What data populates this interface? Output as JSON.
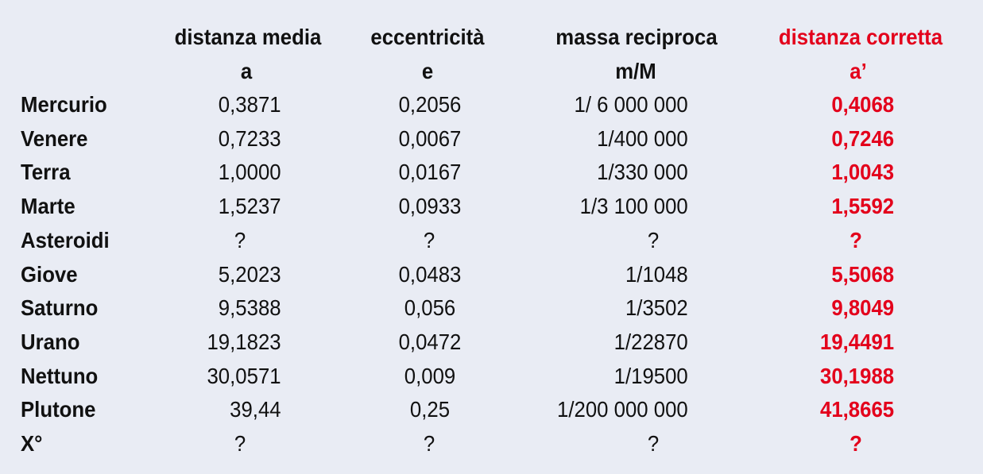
{
  "headers": [
    {
      "line1": "distanza media",
      "line2": "a"
    },
    {
      "line1": "eccentricità",
      "line2": "e"
    },
    {
      "line1": "massa reciproca",
      "line2": "m/M"
    },
    {
      "line1": "distanza corretta",
      "line2": "a’"
    }
  ],
  "rows": [
    {
      "name": "Mercurio",
      "a": "0,3871",
      "e": "0,2056",
      "m": "1/ 6 000 000",
      "ac": "0,4068"
    },
    {
      "name": "Venere",
      "a": "0,7233",
      "e": "0,0067",
      "m": "1/400 000",
      "ac": "0,7246"
    },
    {
      "name": "Terra",
      "a": "1,0000",
      "e": "0,0167",
      "m": "1/330 000",
      "ac": "1,0043"
    },
    {
      "name": "Marte",
      "a": "1,5237",
      "e": "0,0933",
      "m": "1/3 100 000",
      "ac": "1,5592"
    },
    {
      "name": "Asteroidi",
      "a": "?",
      "e": "?",
      "m": "?",
      "ac": "?"
    },
    {
      "name": "Giove",
      "a": "5,2023",
      "e": "0,0483",
      "m": "1/1048",
      "ac": "5,5068"
    },
    {
      "name": "Saturno",
      "a": "9,5388",
      "e": "0,056",
      "m": "1/3502",
      "ac": "9,8049"
    },
    {
      "name": "Urano",
      "a": "19,1823",
      "e": "0,0472",
      "m": "1/22870",
      "ac": "19,4491"
    },
    {
      "name": "Nettuno",
      "a": "30,0571",
      "e": "0,009",
      "m": "1/19500",
      "ac": "30,1988"
    },
    {
      "name": "Plutone",
      "a": "39,44",
      "e": "0,25",
      "m": "1/200 000 000",
      "ac": "41,8665"
    },
    {
      "name": "X°",
      "a": "?",
      "e": "?",
      "m": "?",
      "ac": "?"
    }
  ],
  "colors": {
    "background": "#e9ecf4",
    "text": "#111111",
    "accent_red": "#e3001b"
  }
}
